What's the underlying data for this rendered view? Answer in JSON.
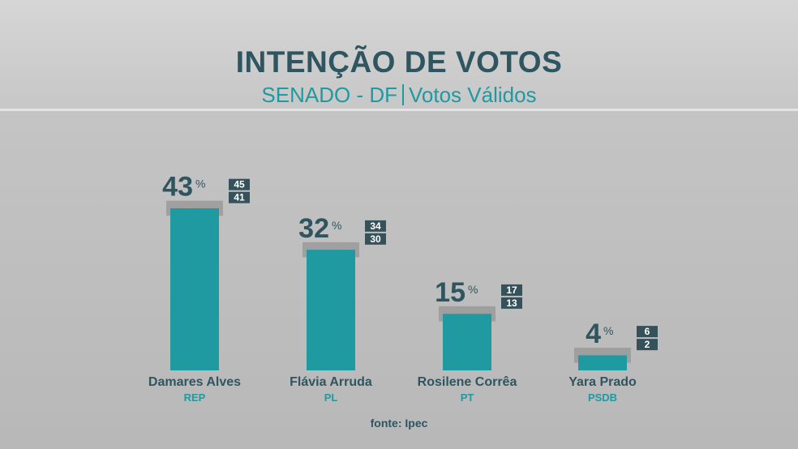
{
  "header": {
    "title": "INTENÇÃO DE VOTOS",
    "subtitle_left": "SENADO - DF",
    "subtitle_right": "Votos Válidos"
  },
  "source": "fonte: Ipec",
  "colors": {
    "bar": "#1e9aa0",
    "margin_band": "#9a9a9a",
    "badge": "#35525b",
    "value_text": "#2f5560",
    "party_text": "#1e9aa0"
  },
  "chart_data": {
    "type": "bar",
    "title": "INTENÇÃO DE VOTOS",
    "subtitle": "SENADO - DF | Votos Válidos",
    "categories": [
      "Damares Alves",
      "Flávia Arruda",
      "Rosilene Corrêa",
      "Yara Prado"
    ],
    "parties": [
      "REP",
      "PL",
      "PT",
      "PSDB"
    ],
    "values": [
      43,
      32,
      15,
      4
    ],
    "upper": [
      45,
      34,
      17,
      6
    ],
    "lower": [
      41,
      30,
      13,
      2
    ],
    "unit": "%",
    "ylim": [
      0,
      45
    ],
    "grid": false,
    "legend": "none"
  }
}
